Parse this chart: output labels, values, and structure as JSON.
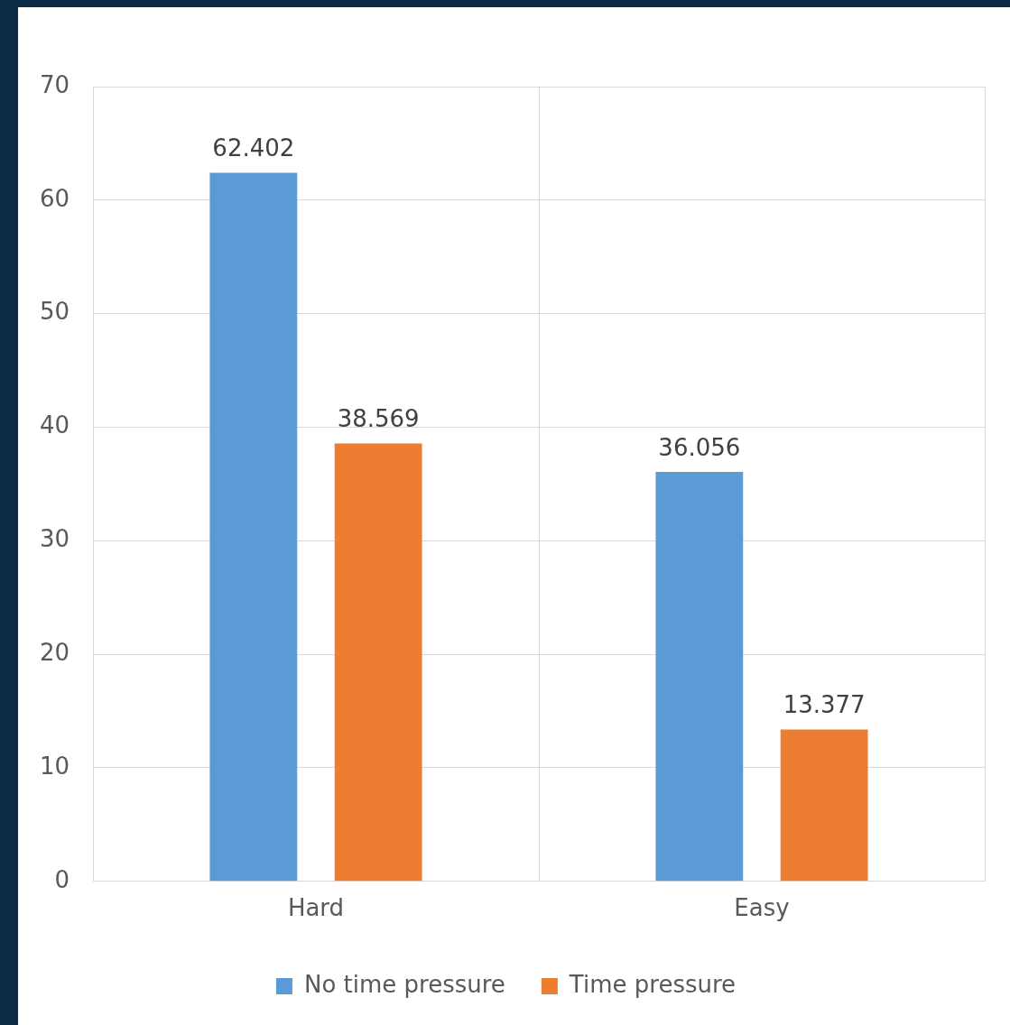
{
  "chart_data": {
    "type": "bar",
    "categories": [
      "Hard",
      "Easy"
    ],
    "series": [
      {
        "name": "No time pressure",
        "color": "#5b9bd5",
        "values": [
          62.402,
          36.056
        ]
      },
      {
        "name": "Time pressure",
        "color": "#ed7d31",
        "values": [
          38.569,
          13.377
        ]
      }
    ],
    "ylim": [
      0,
      70
    ],
    "yticks": [
      0,
      10,
      20,
      30,
      40,
      50,
      60,
      70
    ],
    "grid": true,
    "legend": "bottom",
    "data_labels": true
  }
}
